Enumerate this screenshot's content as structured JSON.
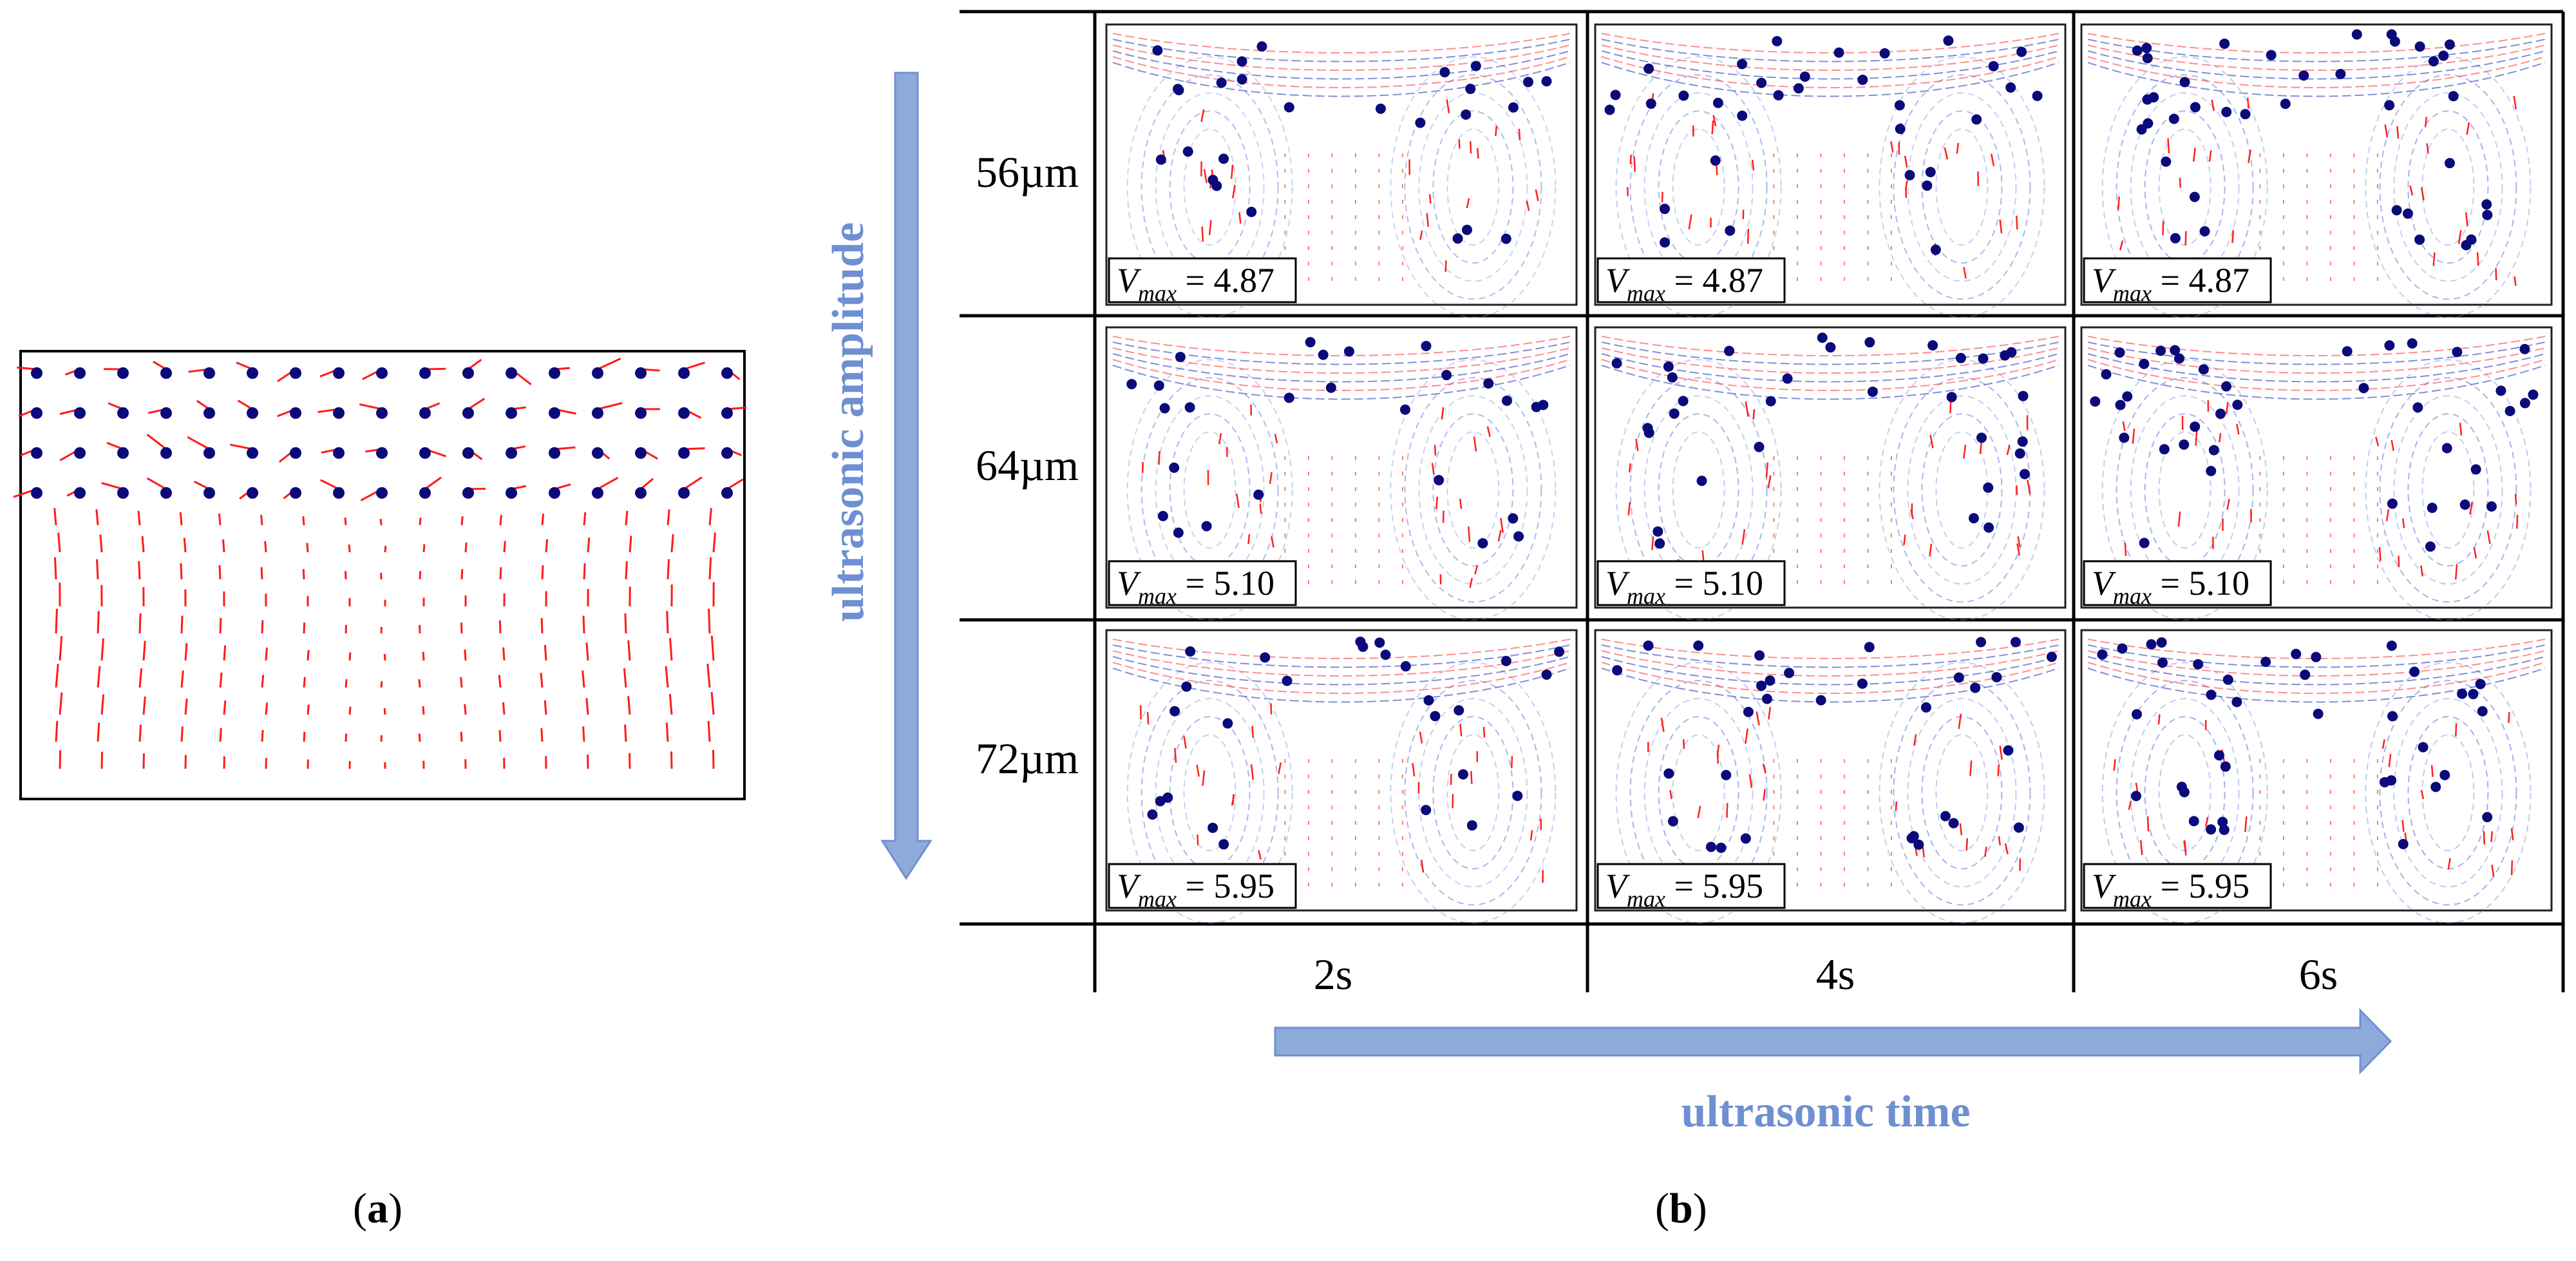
{
  "panel_a": {
    "caption": "a",
    "particle_color": "#0a0a7a",
    "arrow_color": "#ff1a1a"
  },
  "panel_b": {
    "caption": "b",
    "rows": [
      {
        "label": "56µm",
        "vmax": [
          "4.87",
          "4.87",
          "4.87"
        ]
      },
      {
        "label": "64µm",
        "vmax": [
          "5.10",
          "5.10",
          "5.10"
        ]
      },
      {
        "label": "72µm",
        "vmax": [
          "5.95",
          "5.95",
          "5.95"
        ]
      }
    ],
    "columns": [
      "2s",
      "4s",
      "6s"
    ],
    "vmax_label": "V",
    "vmax_subscript": "max",
    "vmax_equals": "=",
    "amplitude_axis_label": "ultrasonic amplitude",
    "time_axis_label": "ultrasonic time",
    "accent_color": "#6f8fd2",
    "arrow_color": "#8eaadb"
  }
}
